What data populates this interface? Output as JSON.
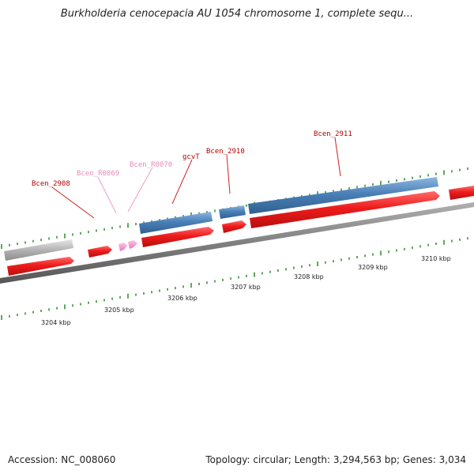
{
  "title": "Burkholderia cenocepacia AU 1054 chromosome 1, complete sequ...",
  "footer": {
    "accession": "Accession: NC_008060",
    "summary": "Topology: circular; Length: 3,294,563 bp; Genes: 3,034"
  },
  "colors": {
    "cds": "#e8141b",
    "cds_reverse": "#4a80b8",
    "pseudo": "#b3b3b3",
    "rna": "#f09ad0",
    "backbone": "#808080",
    "ticks": "#2c8a2c",
    "label_dark": "#b30000",
    "label_pink": "#e889b9"
  },
  "scale": {
    "labels": [
      "3204 kbp",
      "3205 kbp",
      "3206 kbp",
      "3207 kbp",
      "3208 kbp",
      "3209 kbp",
      "3210 kbp"
    ]
  },
  "gene_labels": [
    {
      "text": "Bcen_2908",
      "kind": "dark"
    },
    {
      "text": "Bcen_R0069",
      "kind": "pink"
    },
    {
      "text": "Bcen_R0070",
      "kind": "pink"
    },
    {
      "text": "gcvT",
      "kind": "dark"
    },
    {
      "text": "Bcen_2910",
      "kind": "dark"
    },
    {
      "text": "Bcen_2911",
      "kind": "dark"
    }
  ]
}
